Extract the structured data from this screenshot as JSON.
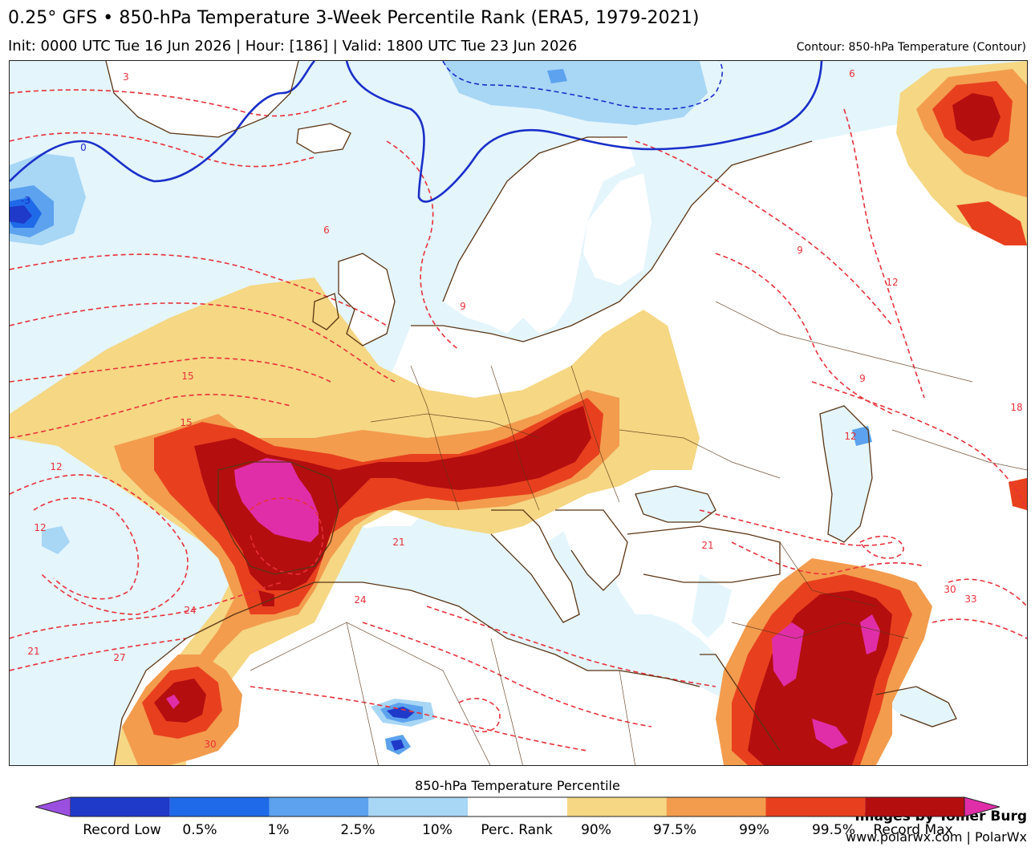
{
  "header": {
    "title": "0.25° GFS • 850-hPa Temperature 3-Week Percentile Rank (ERA5, 1979-2021)",
    "subtitle": "Init: 0000 UTC Tue 16 Jun 2026 | Hour: [186] | Valid: 1800 UTC Tue 23 Jun 2026",
    "contour_note": "Contour: 850-hPa Temperature (Contour)"
  },
  "credits": {
    "line1": "Images by Tomer Burg",
    "line2": "www.polarwx.com | PolarWx"
  },
  "colorbar": {
    "title": "850-hPa Temperature Percentile",
    "labels": [
      "Record Low",
      "0.5%",
      "1%",
      "2.5%",
      "10%",
      "Perc. Rank",
      "90%",
      "97.5%",
      "99%",
      "99.5%",
      "Record Max"
    ],
    "colors": [
      "#9b4fe0",
      "#1f39c9",
      "#1f6ae8",
      "#5ca2ee",
      "#a8d6f5",
      "#ffffff",
      "#f5d784",
      "#f39c4e",
      "#e8401e",
      "#b50e0f",
      "#e02ea8"
    ]
  },
  "contour_labels": [
    "3",
    "0",
    "-3",
    "6",
    "6",
    "9",
    "9",
    "12",
    "12",
    "12",
    "15",
    "15",
    "18",
    "21",
    "21",
    "21",
    "24",
    "24",
    "27",
    "30",
    "33",
    "30",
    "9",
    "12"
  ],
  "colors": {
    "neutral_fill": "#e4f5fc",
    "land": "#ffffff",
    "coastline": "#5a3414",
    "isotherm_dashed": "#e8313a",
    "zero_isotherm": "#1a2fc9"
  }
}
